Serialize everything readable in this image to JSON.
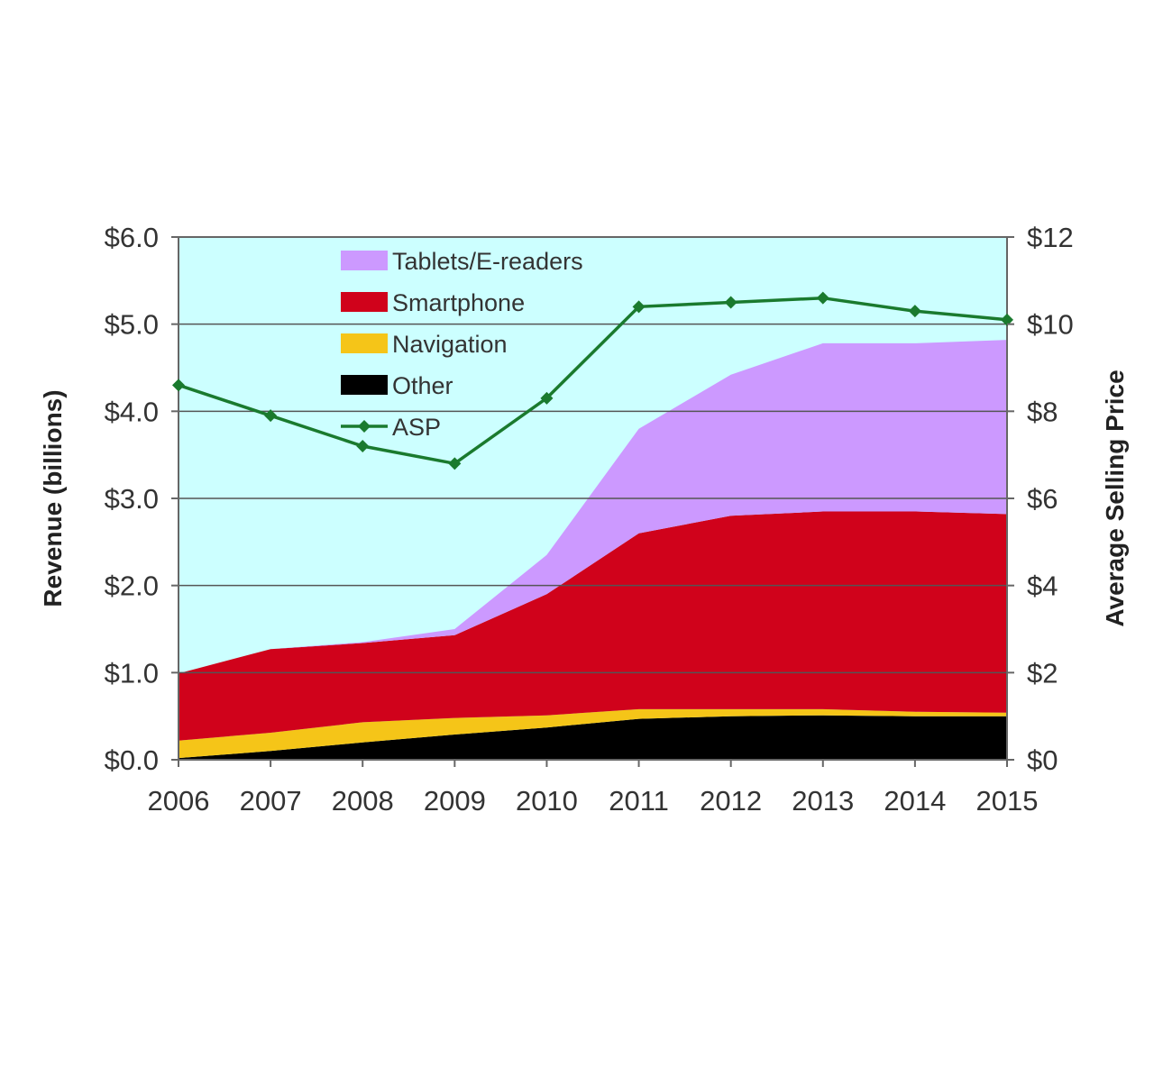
{
  "chart_data": {
    "type": "area",
    "x": [
      2006,
      2007,
      2008,
      2009,
      2010,
      2011,
      2012,
      2013,
      2014,
      2015
    ],
    "x_tick_labels": [
      "2006",
      "2007",
      "2008",
      "2009",
      "2010",
      "2011",
      "2012",
      "2013",
      "2014",
      "2015"
    ],
    "series": [
      {
        "name": "Other",
        "kind": "stacked-area",
        "color": "#000000",
        "values": [
          0.02,
          0.1,
          0.2,
          0.29,
          0.37,
          0.47,
          0.5,
          0.51,
          0.5,
          0.5
        ]
      },
      {
        "name": "Navigation",
        "kind": "stacked-area",
        "color": "#f5c518",
        "values": [
          0.2,
          0.21,
          0.23,
          0.19,
          0.14,
          0.11,
          0.08,
          0.07,
          0.05,
          0.04
        ]
      },
      {
        "name": "Smartphone",
        "kind": "stacked-area",
        "color": "#d0021b",
        "values": [
          0.77,
          0.96,
          0.91,
          0.95,
          1.39,
          2.02,
          2.22,
          2.27,
          2.3,
          2.28
        ]
      },
      {
        "name": "Tablets/E-readers",
        "kind": "stacked-area",
        "color": "#cc99ff",
        "values": [
          0.0,
          0.0,
          0.01,
          0.07,
          0.45,
          1.2,
          1.62,
          1.93,
          1.93,
          2.0
        ]
      },
      {
        "name": "ASP",
        "kind": "line",
        "axis": "right",
        "color": "#1a7a2e",
        "values": [
          8.6,
          7.9,
          7.2,
          6.8,
          8.3,
          10.4,
          10.5,
          10.6,
          10.3,
          10.1
        ]
      }
    ],
    "legend": [
      "Tablets/E-readers",
      "Smartphone",
      "Navigation",
      "Other",
      "ASP"
    ],
    "legend_position": "top-left inside plot",
    "ylabel": "Revenue (billions)",
    "y2label": "Average Selling Price",
    "ylim": [
      0,
      6
    ],
    "y_ticks": [
      0,
      1,
      2,
      3,
      4,
      5,
      6
    ],
    "y_tick_labels": [
      "$0.0",
      "$1.0",
      "$2.0",
      "$3.0",
      "$4.0",
      "$5.0",
      "$6.0"
    ],
    "y2lim": [
      0,
      12
    ],
    "y2_ticks": [
      0,
      2,
      4,
      6,
      8,
      10,
      12
    ],
    "y2_tick_labels": [
      "$0",
      "$2",
      "$4",
      "$6",
      "$8",
      "$10",
      "$12"
    ],
    "grid": "horizontal",
    "plot_background": "#ccffff"
  }
}
